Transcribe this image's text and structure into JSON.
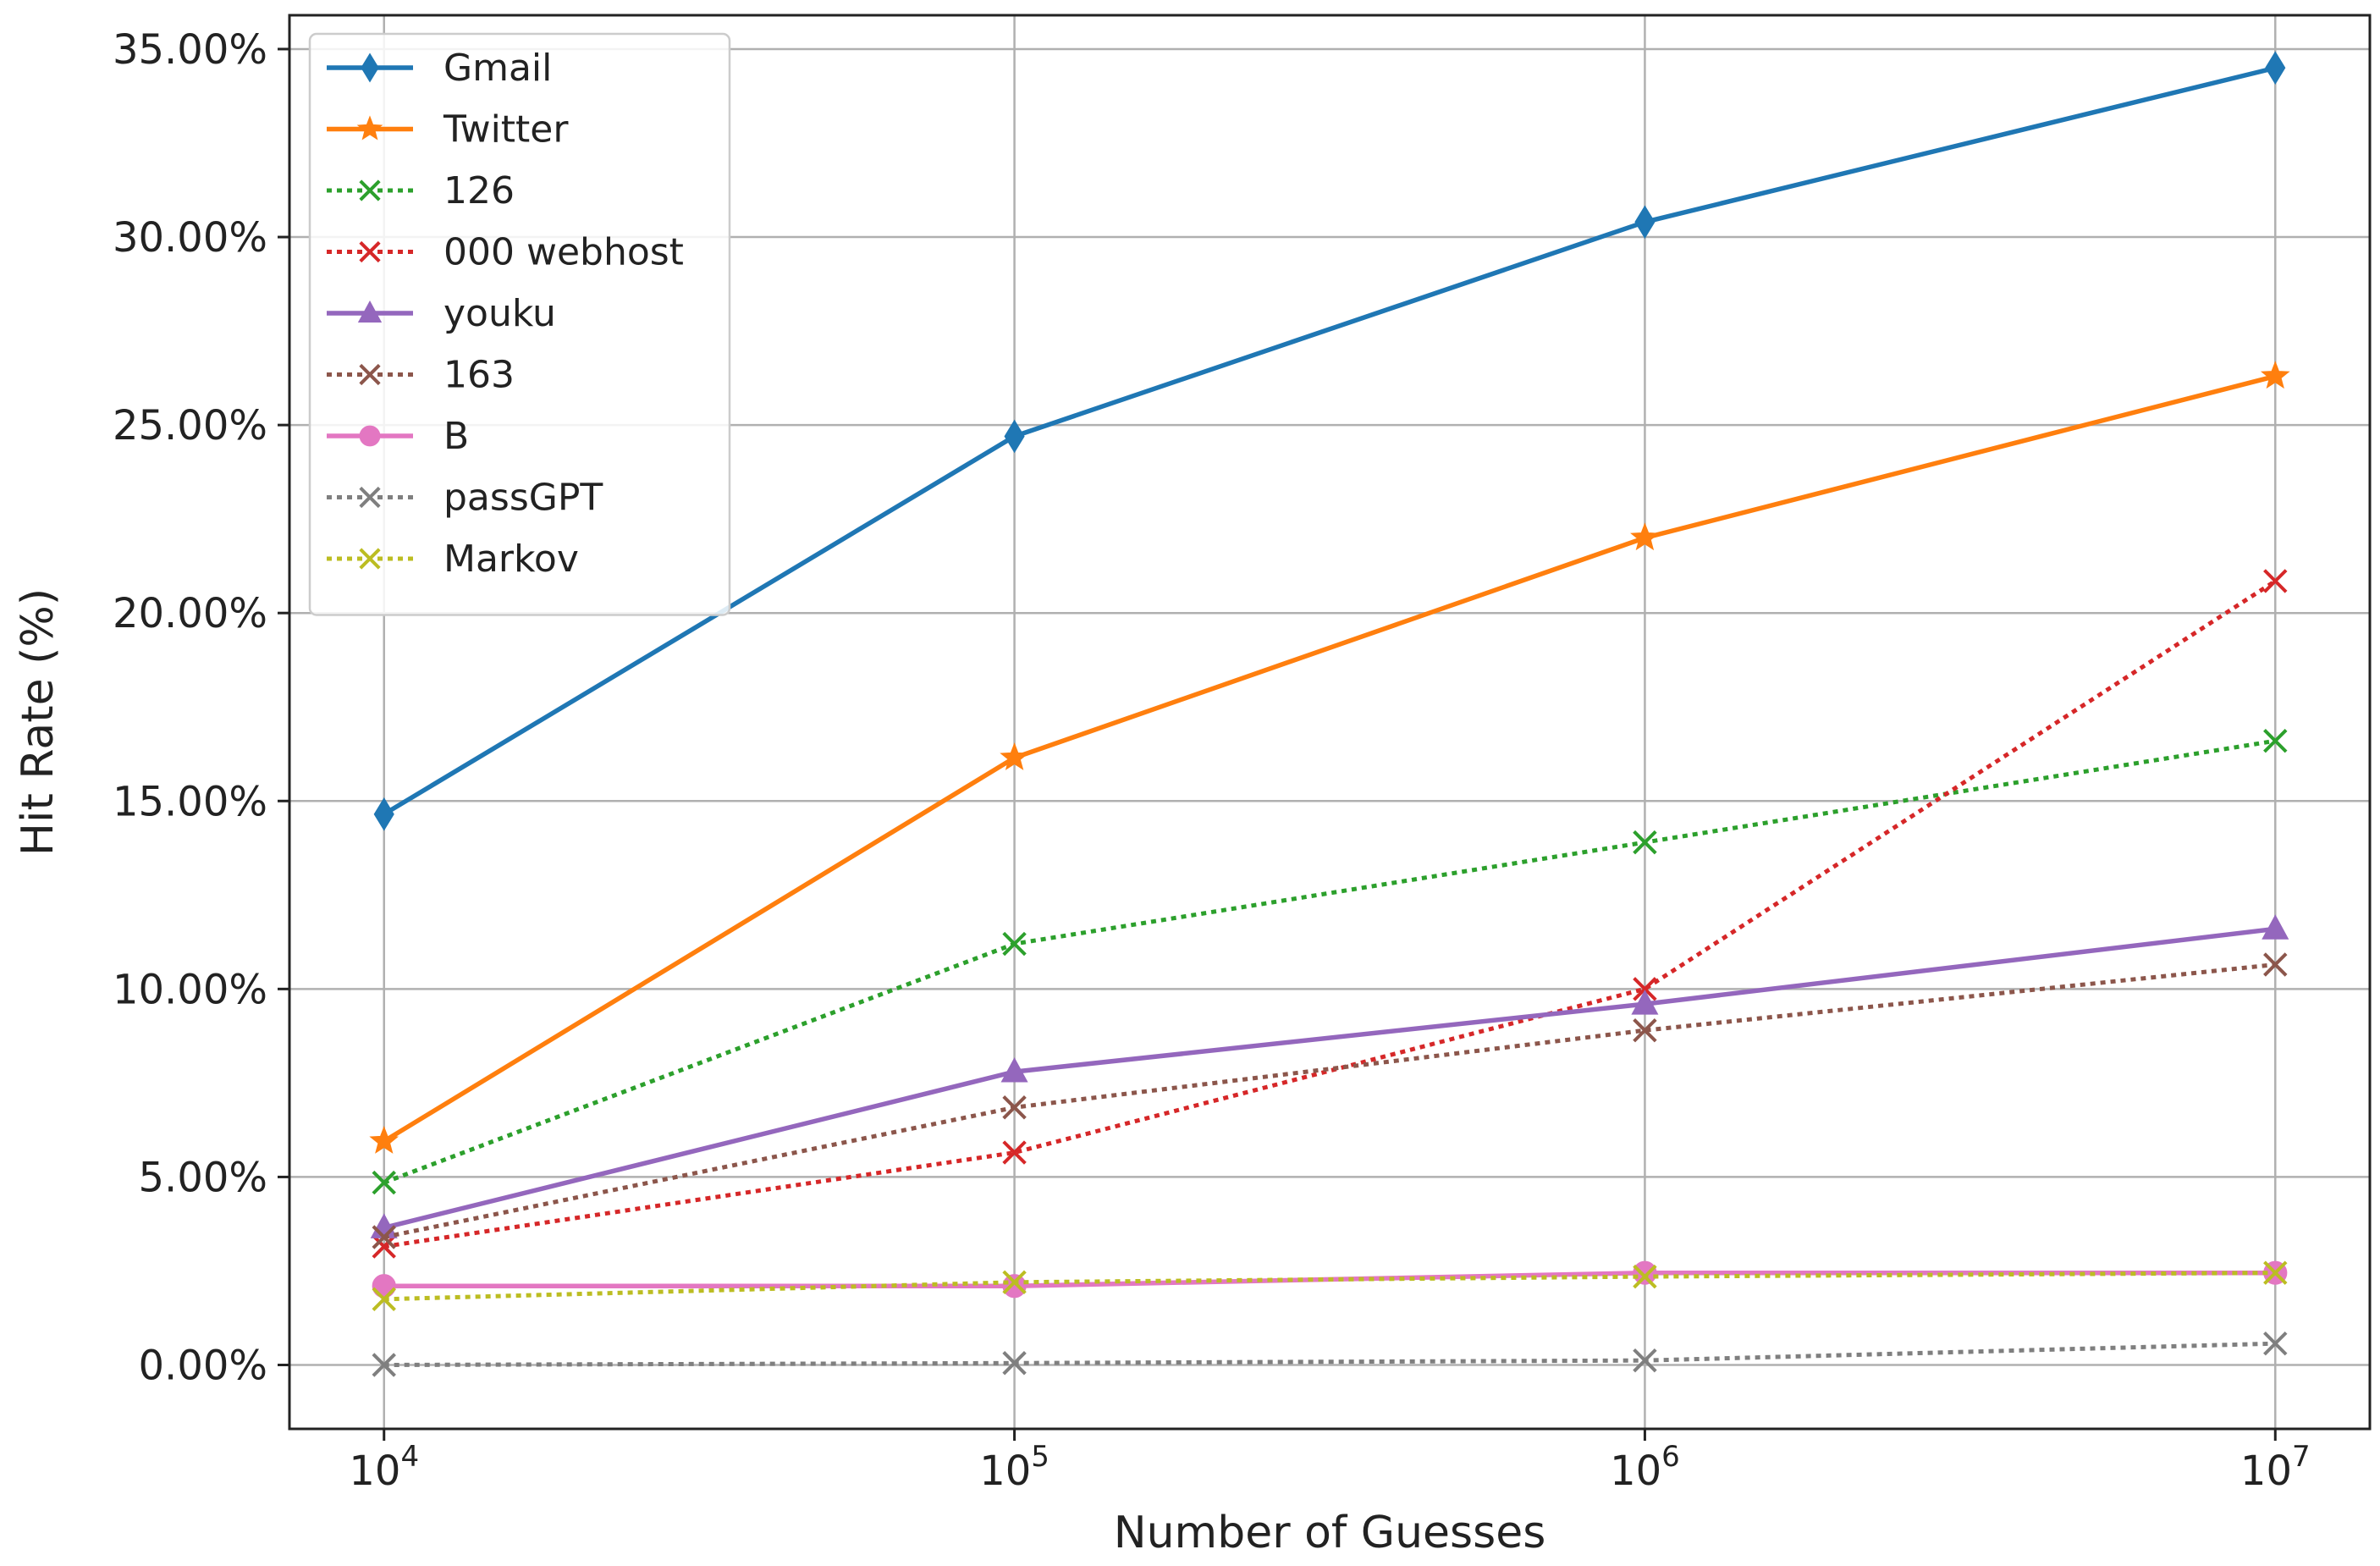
{
  "chart_data": {
    "type": "line",
    "title": "",
    "xlabel": "Number of Guesses",
    "ylabel": "Hit Rate (%)",
    "x_scale": "log",
    "x": [
      10000,
      100000,
      1000000,
      10000000
    ],
    "x_tick_labels": [
      {
        "base": "10",
        "exp": "4"
      },
      {
        "base": "10",
        "exp": "5"
      },
      {
        "base": "10",
        "exp": "6"
      },
      {
        "base": "10",
        "exp": "7"
      }
    ],
    "ylim": [
      -1.7,
      35.9
    ],
    "y_ticks": [
      0,
      5,
      10,
      15,
      20,
      25,
      30,
      35
    ],
    "y_tick_labels": [
      "0.00%",
      "5.00%",
      "10.00%",
      "15.00%",
      "20.00%",
      "25.00%",
      "30.00%",
      "35.00%"
    ],
    "grid": true,
    "legend_position": "top-left",
    "series": [
      {
        "name": "Gmail",
        "values": [
          14.65,
          24.7,
          30.4,
          34.5
        ],
        "color": "#1f77b4",
        "style": "solid",
        "marker": "diamond"
      },
      {
        "name": "Twitter",
        "values": [
          5.95,
          16.15,
          22.0,
          26.3
        ],
        "color": "#ff7f0e",
        "style": "solid",
        "marker": "star"
      },
      {
        "name": "126",
        "values": [
          4.85,
          11.2,
          13.9,
          16.6
        ],
        "color": "#2ca02c",
        "style": "dotted",
        "marker": "x"
      },
      {
        "name": "000 webhost",
        "values": [
          3.15,
          5.65,
          10.0,
          20.85
        ],
        "color": "#d62728",
        "style": "dotted",
        "marker": "x"
      },
      {
        "name": "youku",
        "values": [
          3.65,
          7.8,
          9.6,
          11.6
        ],
        "color": "#9467bd",
        "style": "solid",
        "marker": "triangle"
      },
      {
        "name": "163",
        "values": [
          3.4,
          6.85,
          8.9,
          10.65
        ],
        "color": "#8c564b",
        "style": "dotted",
        "marker": "x"
      },
      {
        "name": "B",
        "values": [
          2.1,
          2.1,
          2.45,
          2.45
        ],
        "color": "#e377c2",
        "style": "solid",
        "marker": "circle"
      },
      {
        "name": "passGPT",
        "values": [
          0.0,
          0.05,
          0.12,
          0.57
        ],
        "color": "#7f7f7f",
        "style": "dotted",
        "marker": "x"
      },
      {
        "name": "Markov",
        "values": [
          1.75,
          2.2,
          2.35,
          2.45
        ],
        "color": "#bcbd22",
        "style": "dotted",
        "marker": "x"
      }
    ]
  }
}
